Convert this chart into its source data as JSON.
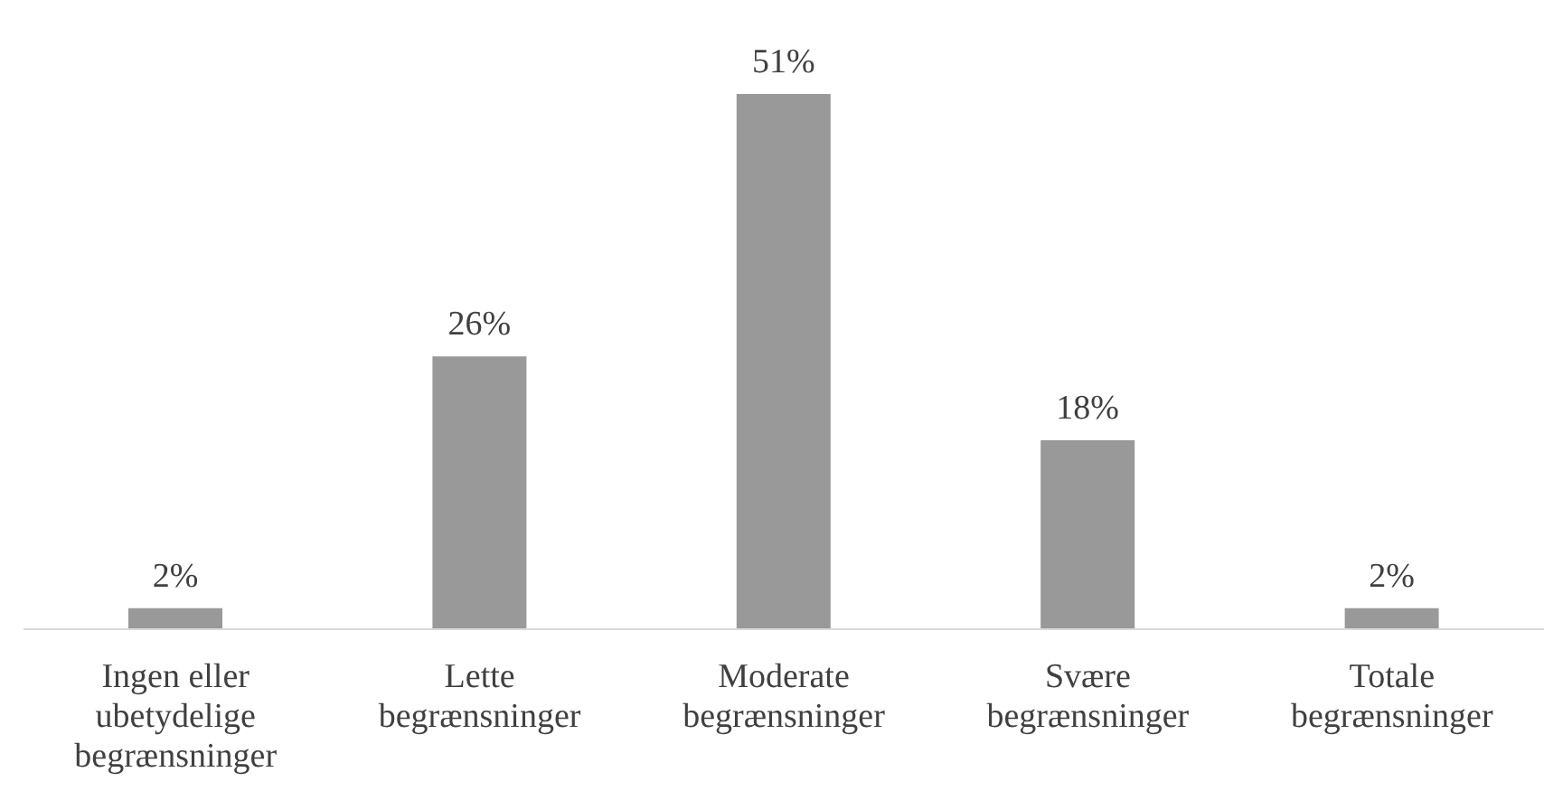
{
  "chart_data": {
    "type": "bar",
    "categories": [
      "Ingen eller ubetydelige begrænsninger",
      "Lette begrænsninger",
      "Moderate begrænsninger",
      "Svære begrænsninger",
      "Totale begrænsninger"
    ],
    "values": [
      2,
      26,
      51,
      18,
      2
    ],
    "value_labels": [
      "2%",
      "26%",
      "51%",
      "18%",
      "2%"
    ],
    "color": "#999999",
    "grid": false,
    "legend": false
  }
}
